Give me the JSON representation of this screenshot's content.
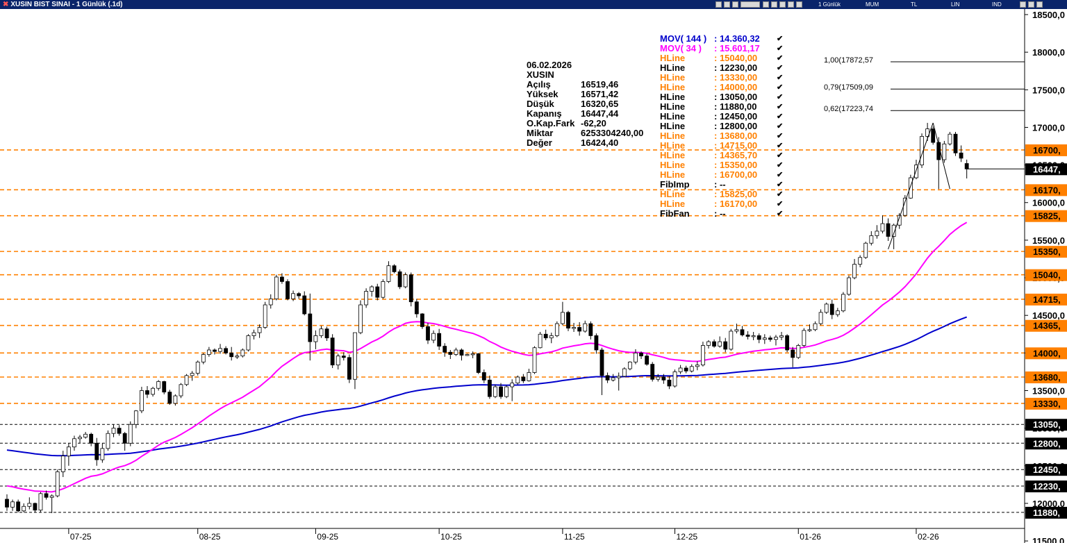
{
  "window": {
    "title": "XUSIN BIST SINAI - 1 Günlük (.1d)",
    "toolbar": {
      "period": "1 Günlük",
      "style": "MUM",
      "currency": "TL",
      "scale": "LIN",
      "mode": "IND"
    }
  },
  "colors": {
    "up": "#ffffff",
    "down": "#000000",
    "mov144": "#0000cc",
    "mov34": "#ff00ff",
    "hline_orange": "#ff8000",
    "hline_black": "#000000"
  },
  "info": {
    "date": "06.02.2026",
    "symbol": "XUSIN",
    "rows": [
      {
        "label": "Açılış",
        "value": "16519,46"
      },
      {
        "label": "Yüksek",
        "value": "16571,42"
      },
      {
        "label": "Düşük",
        "value": "16320,65"
      },
      {
        "label": "Kapanış",
        "value": "16447,44"
      },
      {
        "label": "O.Kap.Fark",
        "value": "-62,20"
      },
      {
        "label": "Miktar",
        "value": "6253304240,00"
      },
      {
        "label": "Değer",
        "value": "16424,40"
      }
    ]
  },
  "legend": [
    {
      "name": "MOV( 144 )",
      "value": ": 14.360,32",
      "color": "#0000cc"
    },
    {
      "name": "MOV( 34 )",
      "value": ": 15.601,17",
      "color": "#ff00ff"
    },
    {
      "name": "HLine",
      "value": ": 15040,00",
      "color": "#ff8000"
    },
    {
      "name": "HLine",
      "value": ": 12230,00",
      "color": "#000000"
    },
    {
      "name": "HLine",
      "value": ": 13330,00",
      "color": "#ff8000"
    },
    {
      "name": "HLine",
      "value": ": 14000,00",
      "color": "#ff8000"
    },
    {
      "name": "HLine",
      "value": ": 13050,00",
      "color": "#000000"
    },
    {
      "name": "HLine",
      "value": ": 11880,00",
      "color": "#000000"
    },
    {
      "name": "HLine",
      "value": ": 12450,00",
      "color": "#000000"
    },
    {
      "name": "HLine",
      "value": ": 12800,00",
      "color": "#000000"
    },
    {
      "name": "HLine",
      "value": ": 13680,00",
      "color": "#ff8000"
    },
    {
      "name": "HLine",
      "value": ": 14715,00",
      "color": "#ff8000"
    },
    {
      "name": "HLine",
      "value": ": 14365,70",
      "color": "#ff8000"
    },
    {
      "name": "HLine",
      "value": ": 15350,00",
      "color": "#ff8000"
    },
    {
      "name": "HLine",
      "value": ": 16700,00",
      "color": "#ff8000"
    },
    {
      "name": "FibImp",
      "value": ": --",
      "color": "#000000"
    },
    {
      "name": "HLine",
      "value": ": 15825,00",
      "color": "#ff8000"
    },
    {
      "name": "HLine",
      "value": ": 16170,00",
      "color": "#ff8000"
    },
    {
      "name": "FibFan",
      "value": ": --",
      "color": "#000000"
    }
  ],
  "check_mark": "✔",
  "fib": [
    {
      "label": "1,00(17872,57",
      "level": 17872.57
    },
    {
      "label": "0,79(17509,09",
      "level": 17509.09
    },
    {
      "label": "0,62(17223,74",
      "level": 17223.74
    }
  ],
  "chart_data": {
    "type": "candlestick",
    "y_axis": {
      "min": 11450,
      "max": 18550,
      "ticks": [
        11500,
        12000,
        12500,
        13000,
        13500,
        14000,
        14500,
        15000,
        15500,
        16000,
        16500,
        17000,
        17500,
        18000,
        18500
      ],
      "tick_labels": [
        "11500,0",
        "12000,0",
        "12500,0",
        "13000,0",
        "13500,0",
        "14000,0",
        "14500,0",
        "15000,0",
        "15500,0",
        "16000,0",
        "16500,0",
        "17000,0",
        "17500,0",
        "18000,0",
        "18500,0"
      ]
    },
    "x_labels": [
      {
        "label": "07-25",
        "index": 11
      },
      {
        "label": "08-25",
        "index": 34
      },
      {
        "label": "09-25",
        "index": 55
      },
      {
        "label": "10-25",
        "index": 77
      },
      {
        "label": "11-25",
        "index": 99
      },
      {
        "label": "12-25",
        "index": 119
      },
      {
        "label": "01-26",
        "index": 141
      },
      {
        "label": "02-26",
        "index": 162
      }
    ],
    "hlines": [
      {
        "value": 16700,
        "label": "16700,",
        "color": "#ff8000"
      },
      {
        "value": 16170,
        "label": "16170,",
        "color": "#ff8000"
      },
      {
        "value": 15825,
        "label": "15825,",
        "color": "#ff8000"
      },
      {
        "value": 15350,
        "label": "15350,",
        "color": "#ff8000"
      },
      {
        "value": 15040,
        "label": "15040,",
        "color": "#ff8000"
      },
      {
        "value": 14715,
        "label": "14715,",
        "color": "#ff8000"
      },
      {
        "value": 14365.7,
        "label": "14365,",
        "color": "#ff8000"
      },
      {
        "value": 14000,
        "label": "14000,",
        "color": "#ff8000"
      },
      {
        "value": 13680,
        "label": "13680,",
        "color": "#ff8000"
      },
      {
        "value": 13330,
        "label": "13330,",
        "color": "#ff8000"
      },
      {
        "value": 13050,
        "label": "13050,",
        "color": "#000000"
      },
      {
        "value": 12800,
        "label": "12800,",
        "color": "#000000"
      },
      {
        "value": 12450,
        "label": "12450,",
        "color": "#000000"
      },
      {
        "value": 12230,
        "label": "12230,",
        "color": "#000000"
      },
      {
        "value": 11880,
        "label": "11880,",
        "color": "#000000"
      }
    ],
    "last_price": {
      "value": 16447.44,
      "label": "16447,"
    },
    "candles": [
      [
        12055,
        12120,
        11900,
        11950
      ],
      [
        11950,
        12050,
        11900,
        12020
      ],
      [
        12020,
        12050,
        11880,
        11900
      ],
      [
        11900,
        12000,
        11880,
        11960
      ],
      [
        11960,
        12080,
        11920,
        12000
      ],
      [
        12000,
        12010,
        11880,
        11910
      ],
      [
        11910,
        12150,
        11880,
        12130
      ],
      [
        12130,
        12170,
        12050,
        12080
      ],
      [
        12080,
        12120,
        11870,
        12100
      ],
      [
        12100,
        12450,
        12080,
        12420
      ],
      [
        12420,
        12700,
        12350,
        12630
      ],
      [
        12630,
        12800,
        12500,
        12750
      ],
      [
        12750,
        12900,
        12700,
        12860
      ],
      [
        12860,
        12910,
        12800,
        12880
      ],
      [
        12880,
        12950,
        12860,
        12920
      ],
      [
        12920,
        12940,
        12760,
        12800
      ],
      [
        12800,
        12870,
        12500,
        12580
      ],
      [
        12580,
        12800,
        12540,
        12730
      ],
      [
        12730,
        12970,
        12700,
        12930
      ],
      [
        12930,
        13050,
        12880,
        13000
      ],
      [
        13000,
        13040,
        12900,
        12930
      ],
      [
        12930,
        12950,
        12700,
        12800
      ],
      [
        12800,
        13090,
        12760,
        13050
      ],
      [
        13050,
        13240,
        13000,
        13230
      ],
      [
        13230,
        13550,
        13200,
        13500
      ],
      [
        13500,
        13560,
        13400,
        13450
      ],
      [
        13450,
        13550,
        13420,
        13530
      ],
      [
        13530,
        13640,
        13500,
        13620
      ],
      [
        13620,
        13630,
        13450,
        13480
      ],
      [
        13480,
        13510,
        13310,
        13330
      ],
      [
        13330,
        13450,
        13300,
        13430
      ],
      [
        13430,
        13600,
        13400,
        13580
      ],
      [
        13580,
        13720,
        13560,
        13700
      ],
      [
        13700,
        13760,
        13630,
        13730
      ],
      [
        13730,
        13900,
        13700,
        13880
      ],
      [
        13880,
        14000,
        13850,
        13980
      ],
      [
        13980,
        14080,
        13950,
        14040
      ],
      [
        14040,
        14060,
        13980,
        14020
      ],
      [
        14020,
        14120,
        13990,
        14060
      ],
      [
        14060,
        14090,
        13980,
        14000
      ],
      [
        14000,
        14080,
        13900,
        13950
      ],
      [
        13950,
        13990,
        13920,
        13960
      ],
      [
        13960,
        14060,
        13940,
        14040
      ],
      [
        14040,
        14250,
        14020,
        14230
      ],
      [
        14230,
        14310,
        14180,
        14270
      ],
      [
        14270,
        14380,
        14200,
        14340
      ],
      [
        14340,
        14680,
        14320,
        14640
      ],
      [
        14640,
        14780,
        14590,
        14720
      ],
      [
        14720,
        15040,
        14700,
        15010
      ],
      [
        15010,
        15060,
        14920,
        14950
      ],
      [
        14950,
        14980,
        14700,
        14720
      ],
      [
        14720,
        14830,
        14690,
        14790
      ],
      [
        14790,
        14810,
        14720,
        14760
      ],
      [
        14760,
        14820,
        14500,
        14520
      ],
      [
        14520,
        14790,
        13900,
        14150
      ],
      [
        14150,
        14300,
        14050,
        14230
      ],
      [
        14230,
        14360,
        14200,
        14320
      ],
      [
        14320,
        14350,
        14160,
        14200
      ],
      [
        14200,
        14250,
        13800,
        13840
      ],
      [
        13840,
        13990,
        13780,
        13960
      ],
      [
        13960,
        14010,
        13900,
        13940
      ],
      [
        13940,
        13980,
        13600,
        13650
      ],
      [
        13650,
        14250,
        13520,
        14270
      ],
      [
        14270,
        14700,
        14250,
        14640
      ],
      [
        14640,
        14860,
        14600,
        14820
      ],
      [
        14820,
        14900,
        14750,
        14880
      ],
      [
        14880,
        14920,
        14700,
        14740
      ],
      [
        14740,
        14980,
        14720,
        14950
      ],
      [
        14950,
        15220,
        14930,
        15160
      ],
      [
        15160,
        15180,
        15060,
        15080
      ],
      [
        15080,
        15110,
        14850,
        14880
      ],
      [
        14880,
        15070,
        14860,
        15040
      ],
      [
        15040,
        15070,
        14620,
        14680
      ],
      [
        14680,
        14720,
        14470,
        14520
      ],
      [
        14520,
        14530,
        14320,
        14350
      ],
      [
        14350,
        14400,
        14120,
        14170
      ],
      [
        14170,
        14300,
        14130,
        14260
      ],
      [
        14260,
        14320,
        14040,
        14090
      ],
      [
        14090,
        14130,
        13950,
        14010
      ],
      [
        14010,
        14040,
        13920,
        13980
      ],
      [
        13980,
        14070,
        13960,
        14040
      ],
      [
        14040,
        14060,
        13900,
        13970
      ],
      [
        13970,
        13990,
        13960,
        13980
      ],
      [
        13980,
        14020,
        13930,
        13990
      ],
      [
        13990,
        14000,
        13720,
        13740
      ],
      [
        13740,
        13780,
        13600,
        13640
      ],
      [
        13640,
        13700,
        13390,
        13420
      ],
      [
        13420,
        13580,
        13400,
        13550
      ],
      [
        13550,
        13600,
        13390,
        13420
      ],
      [
        13420,
        13570,
        13400,
        13550
      ],
      [
        13550,
        13650,
        13360,
        13600
      ],
      [
        13600,
        13700,
        13580,
        13680
      ],
      [
        13680,
        13720,
        13600,
        13630
      ],
      [
        13630,
        13790,
        13620,
        13740
      ],
      [
        13740,
        14090,
        13720,
        14070
      ],
      [
        14070,
        14280,
        14060,
        14250
      ],
      [
        14250,
        14310,
        14170,
        14200
      ],
      [
        14200,
        14270,
        14130,
        14230
      ],
      [
        14230,
        14420,
        14210,
        14390
      ],
      [
        14390,
        14680,
        14370,
        14540
      ],
      [
        14540,
        14560,
        14290,
        14330
      ],
      [
        14330,
        14400,
        14280,
        14340
      ],
      [
        14340,
        14410,
        14230,
        14290
      ],
      [
        14290,
        14430,
        14270,
        14390
      ],
      [
        14390,
        14420,
        14180,
        14230
      ],
      [
        14230,
        14260,
        13990,
        14040
      ],
      [
        14040,
        14070,
        13440,
        13700
      ],
      [
        13700,
        13740,
        13600,
        13640
      ],
      [
        13640,
        13720,
        13620,
        13670
      ],
      [
        13670,
        13740,
        13500,
        13690
      ],
      [
        13690,
        13810,
        13680,
        13790
      ],
      [
        13790,
        13890,
        13770,
        13880
      ],
      [
        13880,
        14050,
        13850,
        14000
      ],
      [
        14000,
        14020,
        13920,
        13960
      ],
      [
        13960,
        13990,
        13830,
        13850
      ],
      [
        13850,
        13880,
        13620,
        13650
      ],
      [
        13650,
        13720,
        13620,
        13680
      ],
      [
        13680,
        13720,
        13590,
        13640
      ],
      [
        13640,
        13690,
        13520,
        13560
      ],
      [
        13560,
        13780,
        13540,
        13750
      ],
      [
        13750,
        13840,
        13720,
        13800
      ],
      [
        13800,
        13830,
        13730,
        13760
      ],
      [
        13760,
        13850,
        13740,
        13820
      ],
      [
        13820,
        13890,
        13770,
        13840
      ],
      [
        13840,
        14150,
        13820,
        14100
      ],
      [
        14100,
        14170,
        14060,
        14150
      ],
      [
        14150,
        14180,
        14070,
        14090
      ],
      [
        14090,
        14220,
        14070,
        14150
      ],
      [
        14150,
        14200,
        14010,
        14050
      ],
      [
        14050,
        14320,
        14030,
        14290
      ],
      [
        14290,
        14390,
        14260,
        14310
      ],
      [
        14310,
        14360,
        14220,
        14240
      ],
      [
        14240,
        14290,
        14180,
        14220
      ],
      [
        14220,
        14280,
        14170,
        14230
      ],
      [
        14230,
        14260,
        14130,
        14180
      ],
      [
        14180,
        14250,
        14120,
        14200
      ],
      [
        14200,
        14230,
        14150,
        14180
      ],
      [
        14180,
        14240,
        14100,
        14210
      ],
      [
        14210,
        14280,
        14170,
        14230
      ],
      [
        14230,
        14250,
        14010,
        14040
      ],
      [
        14040,
        14080,
        13810,
        13940
      ],
      [
        13940,
        14120,
        13920,
        14100
      ],
      [
        14100,
        14330,
        14080,
        14300
      ],
      [
        14300,
        14380,
        14280,
        14310
      ],
      [
        14310,
        14420,
        14290,
        14390
      ],
      [
        14390,
        14580,
        14370,
        14540
      ],
      [
        14540,
        14670,
        14520,
        14650
      ],
      [
        14650,
        14710,
        14450,
        14510
      ],
      [
        14510,
        14600,
        14480,
        14560
      ],
      [
        14560,
        14810,
        14540,
        14780
      ],
      [
        14780,
        15030,
        14760,
        15000
      ],
      [
        15000,
        15250,
        14980,
        15180
      ],
      [
        15180,
        15300,
        15140,
        15270
      ],
      [
        15270,
        15480,
        15250,
        15460
      ],
      [
        15460,
        15620,
        15430,
        15560
      ],
      [
        15560,
        15700,
        15520,
        15620
      ],
      [
        15620,
        15830,
        15590,
        15720
      ],
      [
        15720,
        15790,
        15490,
        15550
      ],
      [
        15550,
        15720,
        15380,
        15700
      ],
      [
        15700,
        15860,
        15650,
        15830
      ],
      [
        15830,
        16100,
        15810,
        16060
      ],
      [
        16060,
        16370,
        16050,
        16330
      ],
      [
        16330,
        16570,
        16310,
        16500
      ],
      [
        16500,
        16920,
        16460,
        16880
      ],
      [
        16880,
        17060,
        16820,
        16980
      ],
      [
        16980,
        17010,
        16770,
        16800
      ],
      [
        16800,
        16870,
        16180,
        16570
      ],
      [
        16570,
        16820,
        16530,
        16780
      ],
      [
        16780,
        16940,
        16760,
        16910
      ],
      [
        16910,
        16940,
        16620,
        16660
      ],
      [
        16660,
        16760,
        16540,
        16590
      ],
      [
        16519.46,
        16571.42,
        16320.65,
        16447.44
      ]
    ],
    "mov144_label": "MOV( 144 )",
    "mov34_label": "MOV( 34 )"
  }
}
